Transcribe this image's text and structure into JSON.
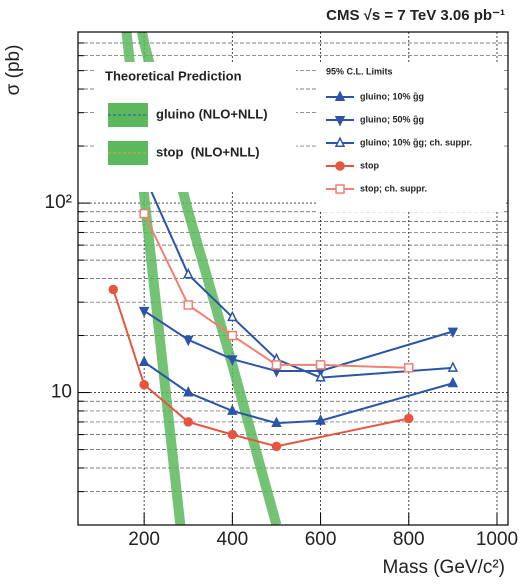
{
  "chart_data": {
    "type": "line",
    "title": "CMS  √s = 7 TeV   3.06 pb⁻¹",
    "x_label": "Mass (GeV/c²)",
    "y_label": "σ (pb)",
    "xlim": [
      50,
      1025
    ],
    "xticks": [
      200,
      400,
      600,
      800,
      1000
    ],
    "ylim": [
      2,
      800
    ],
    "log_y": true,
    "yticks": [
      {
        "value": 10,
        "label": "10"
      },
      {
        "value": 100,
        "label": "10²"
      }
    ],
    "y_minor_ticks": [
      2,
      3,
      4,
      5,
      6,
      7,
      8,
      9,
      20,
      30,
      40,
      50,
      60,
      70,
      80,
      90,
      200,
      300,
      400,
      500,
      600,
      700
    ],
    "grid": true,
    "theory_legend_title": "Theoretical Prediction",
    "limits_legend_title": "95% C.L. Limits",
    "theory": [
      {
        "name": "gluino (NLO+NLL)",
        "color": "#5cb85c",
        "x": [
          195,
          200,
          300,
          400,
          500
        ],
        "values": [
          800,
          700,
          90,
          14,
          2
        ]
      },
      {
        "name": "stop  (NLO+NLL)",
        "color": "#5cb85c",
        "x": [
          160,
          200,
          250,
          282
        ],
        "values": [
          800,
          110,
          9.5,
          2
        ]
      }
    ],
    "series": [
      {
        "name": "gluino; 10% g̃g",
        "color": "#2b55a8",
        "marker": "triangle-up",
        "filled": true,
        "x": [
          200,
          300,
          400,
          500,
          600,
          900
        ],
        "values": [
          14.5,
          10,
          8,
          6.9,
          7.1,
          11.2
        ]
      },
      {
        "name": "gluino; 50% g̃g",
        "color": "#2b55a8",
        "marker": "triangle-down",
        "filled": true,
        "x": [
          200,
          300,
          400,
          500,
          600,
          900
        ],
        "values": [
          27,
          19,
          15,
          13,
          13,
          21
        ]
      },
      {
        "name": "gluino; 10% g̃g; ch. suppr.",
        "color": "#2b55a8",
        "marker": "triangle-up",
        "filled": false,
        "x": [
          200,
          300,
          400,
          500,
          600,
          900
        ],
        "values": [
          140,
          42,
          25,
          15,
          12,
          13.5
        ]
      },
      {
        "name": "stop",
        "color": "#e8553f",
        "marker": "circle",
        "filled": true,
        "x": [
          130,
          200,
          300,
          400,
          500,
          800
        ],
        "values": [
          35,
          11,
          7,
          6,
          5.2,
          7.3
        ]
      },
      {
        "name": "stop; ch. suppr.",
        "color": "#f08070",
        "marker": "square",
        "filled": false,
        "x": [
          200,
          300,
          400,
          500,
          600,
          800
        ],
        "values": [
          88,
          29,
          20,
          14,
          14,
          13.5
        ]
      }
    ]
  }
}
